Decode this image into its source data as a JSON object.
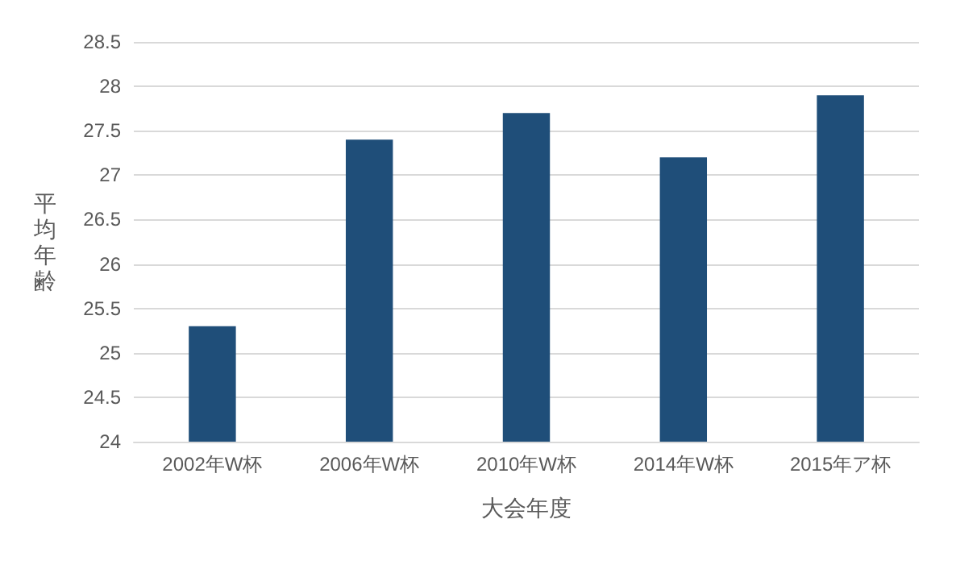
{
  "chart_data": {
    "type": "bar",
    "xlabel": "大会年度",
    "ylabel": "平均年齢",
    "categories": [
      "2002年W杯",
      "2006年W杯",
      "2010年W杯",
      "2014年W杯",
      "2015年ア杯"
    ],
    "values": [
      25.3,
      27.4,
      27.7,
      27.2,
      27.9
    ],
    "color": "#1f4e79",
    "ylim": [
      24,
      28.5
    ],
    "yticks": [
      24,
      24.5,
      25,
      25.5,
      26,
      26.5,
      27,
      27.5,
      28,
      28.5
    ],
    "grid": "y"
  }
}
